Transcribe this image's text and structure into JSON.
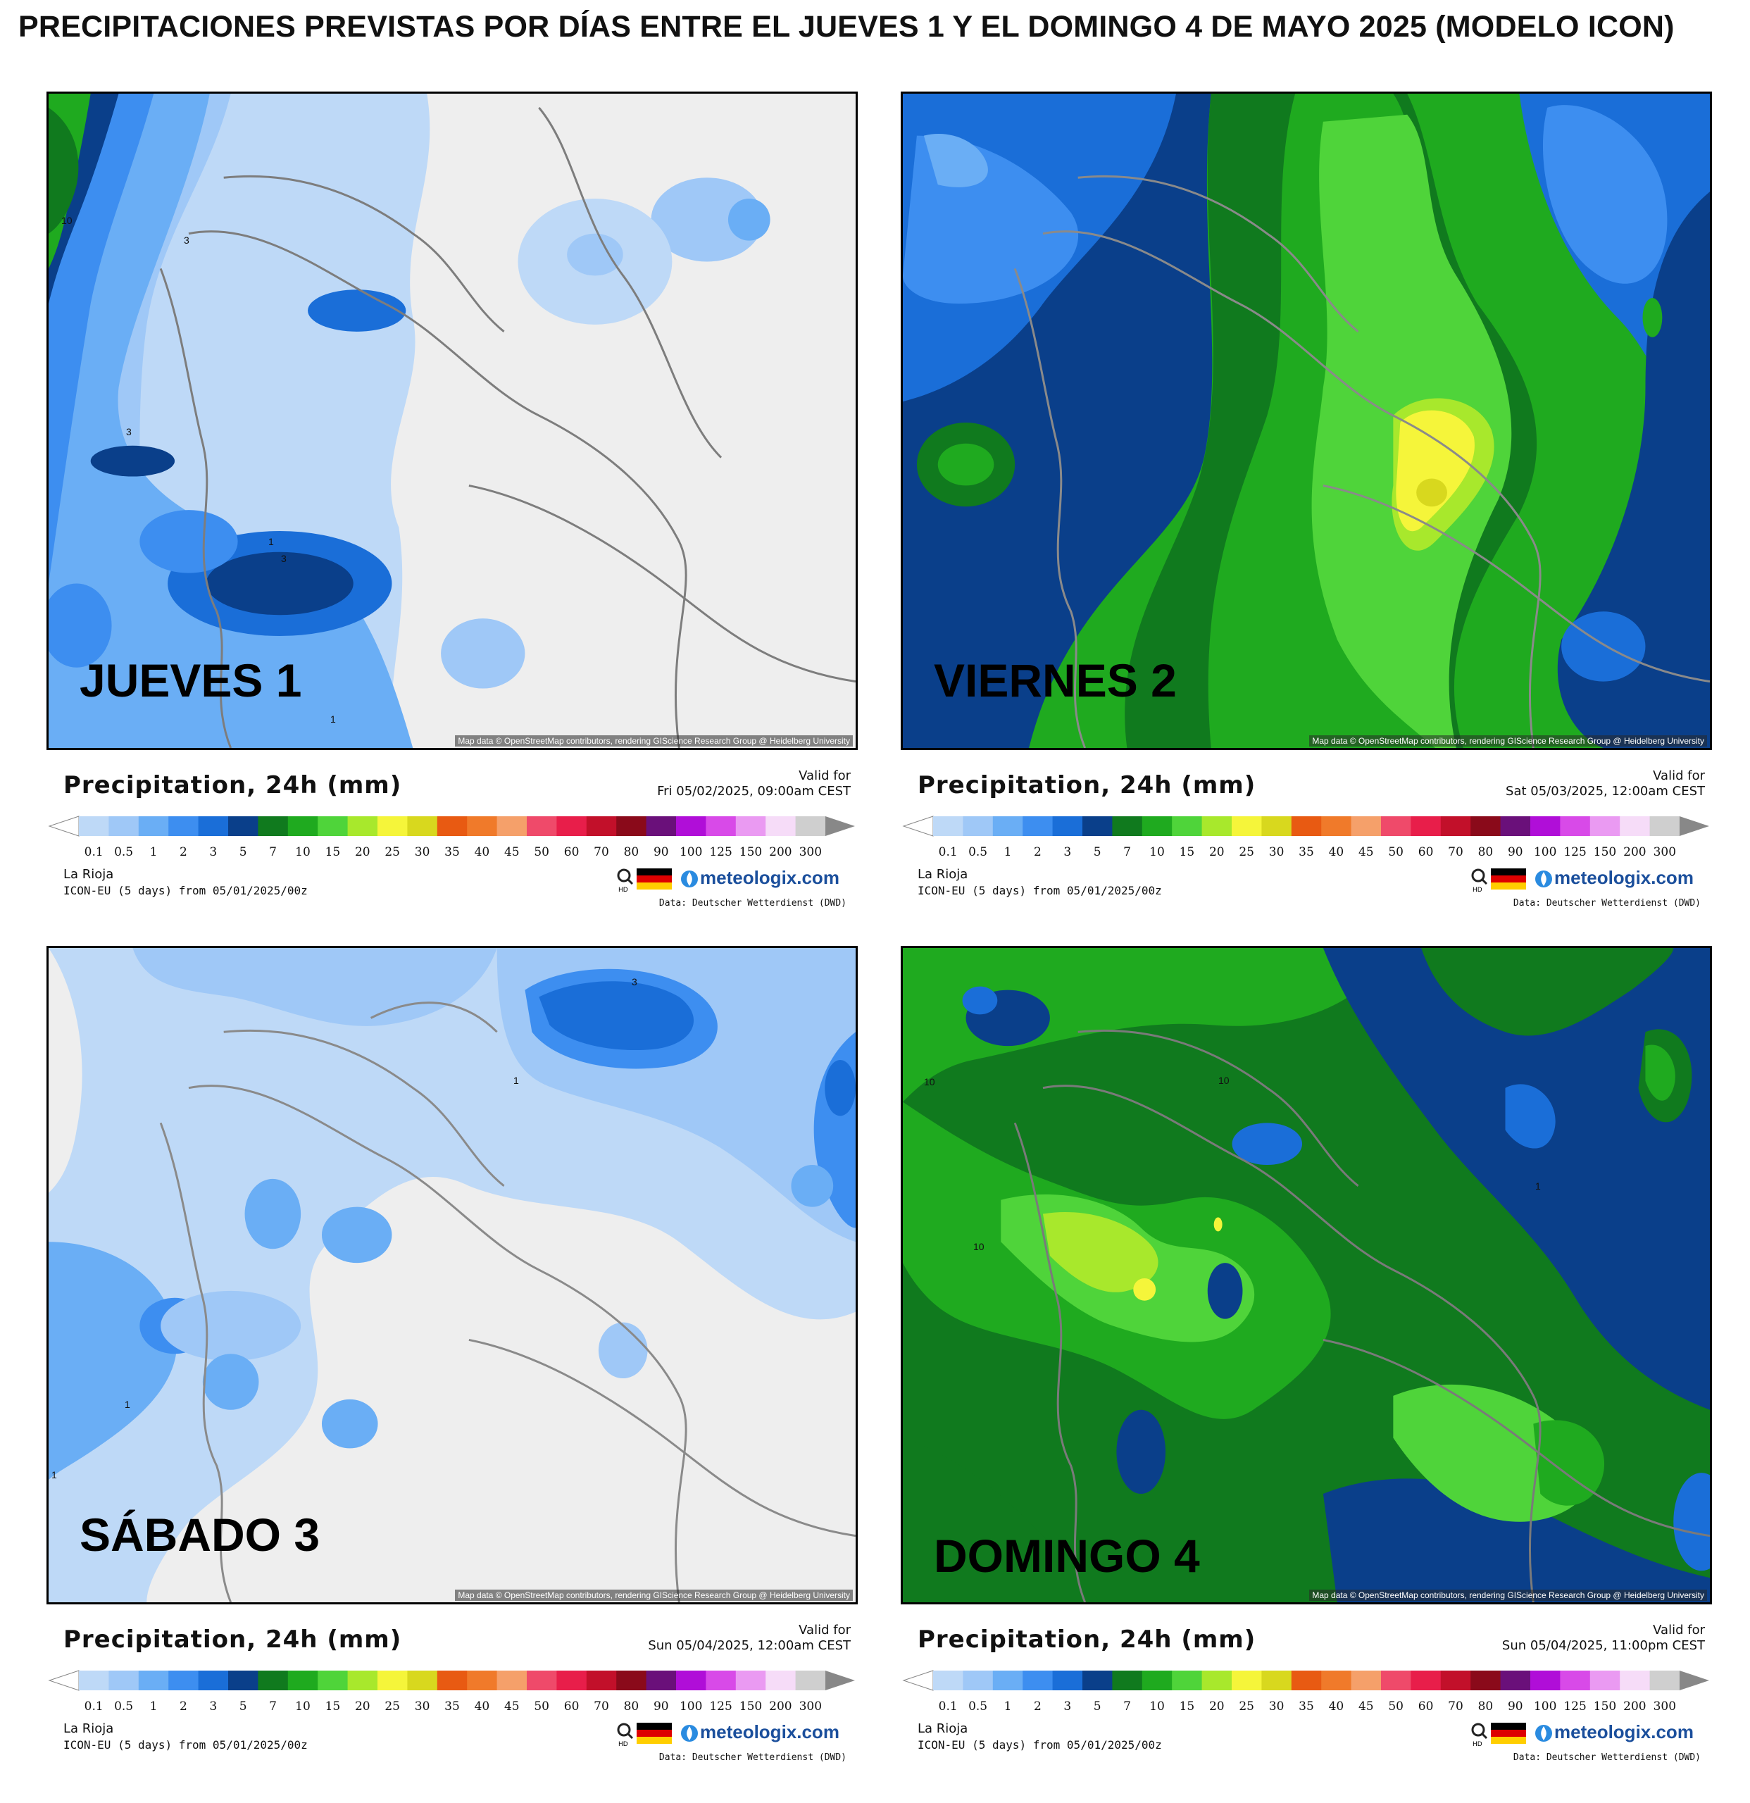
{
  "title": "PRECIPITACIONES PREVISTAS POR DÍAS ENTRE EL JUEVES 1 Y EL DOMINGO 4 DE MAYO 2025 (MODELO ICON)",
  "legend_common": {
    "variable": "Precipitation, 24h (mm)",
    "valid_for": "Valid for",
    "region": "La Rioja",
    "model_run": "ICON-EU (5 days) from 05/01/2025/00z",
    "brand": "meteologix.com",
    "data_source": "Data: Deutscher Wetterdienst (DWD)",
    "attribution": "Map data © OpenStreetMap contributors, rendering GIScience Research Group @ Heidelberg University",
    "scale": [
      "0.1",
      "0.5",
      "1",
      "2",
      "3",
      "5",
      "7",
      "10",
      "15",
      "20",
      "25",
      "30",
      "35",
      "40",
      "45",
      "50",
      "60",
      "70",
      "80",
      "90",
      "100",
      "125",
      "150",
      "200",
      "300"
    ],
    "colors": [
      "#bed9f7",
      "#9fc8f7",
      "#6aaef5",
      "#3d8ef0",
      "#1a6ed8",
      "#0a3f8a",
      "#107a1e",
      "#1faa1f",
      "#4fd43a",
      "#a8e82c",
      "#f5f53a",
      "#d8d81e",
      "#e85a12",
      "#f07a2a",
      "#f5a06a",
      "#ef4a6a",
      "#e81e4a",
      "#c2102a",
      "#8a0a1a",
      "#6a107a",
      "#b00ed8",
      "#d84ae8",
      "#ea9af2",
      "#f6dcf8",
      "#cfcfcf"
    ]
  },
  "panels": [
    {
      "day": "JUEVES 1",
      "valid_time": "Fri 05/02/2025, 09:00am CEST",
      "contours": [
        "10",
        "3",
        "3",
        "1",
        "3",
        "1"
      ]
    },
    {
      "day": "VIERNES 2",
      "valid_time": "Sat 05/03/2025, 12:00am CEST",
      "contours": []
    },
    {
      "day": "SÁBADO 3",
      "valid_time": "Sun 05/04/2025, 12:00am CEST",
      "contours": [
        "3",
        "1",
        "1",
        "1"
      ]
    },
    {
      "day": "DOMINGO 4",
      "valid_time": "Sun 05/04/2025, 11:00pm CEST",
      "contours": [
        "10",
        "10",
        "10",
        "1"
      ]
    }
  ]
}
